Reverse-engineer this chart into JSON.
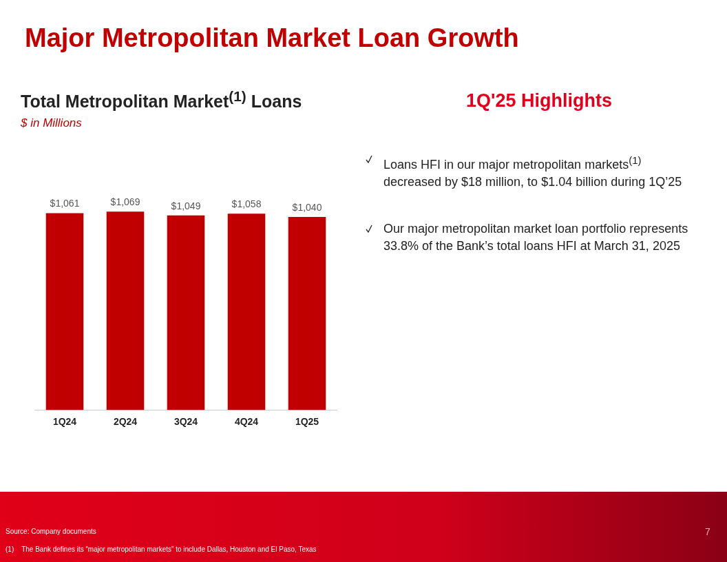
{
  "chart_data": {
    "type": "bar",
    "title": "Major Metropolitan Market Loan Growth",
    "subtitle": "Total Metropolitan Market$^{(1)}$ Loans",
    "categories": [
      "1Q24",
      "2Q24",
      "3Q24",
      "4Q24",
      "1Q25"
    ],
    "values": [
      1061,
      1069,
      1049,
      1058,
      1040
    ],
    "value_labels": [
      "$1,061",
      "$1,069",
      "$1,049",
      "$1,058",
      "$1,040"
    ],
    "color": "#c00000",
    "grid": false,
    "legend": false,
    "tick_labels": "x",
    "annotations": [
      "$ in Millions",
      "1Q'25 Highlights",
      "Loans HFI in our major metropolitan markets$^{(1)}$ decreased by $18 million, to $1.04 billion during 1Q’25",
      "Our major metropolitan market loan portfolio represents 33.8% of the Bank’s total loans HFI at March 31, 2025",
      "Source: Company documents",
      "7",
      "(1)    The Bank defines its “major metropolitan markets” to include Dallas, Houston and El Paso, Texas"
    ]
  }
}
